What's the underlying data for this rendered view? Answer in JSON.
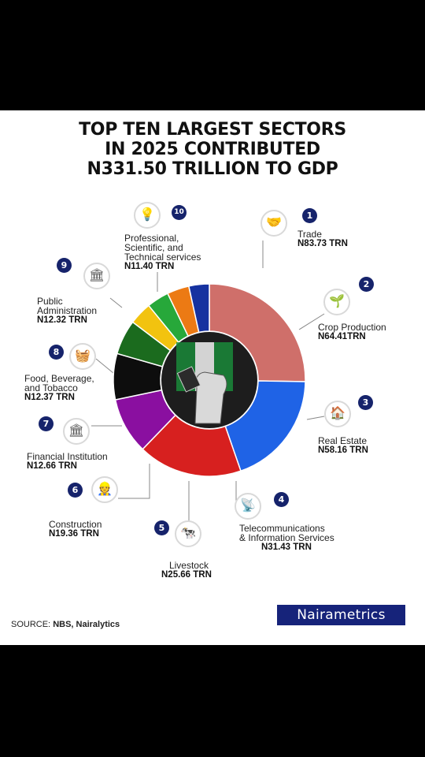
{
  "title": {
    "line1": "TOP TEN LARGEST SECTORS",
    "line2": "IN 2025 CONTRIBUTED",
    "line3": "N331.50 TRILLION TO GDP"
  },
  "chart_data": {
    "type": "pie",
    "title": "TOP TEN LARGEST SECTORS IN 2025 CONTRIBUTED N331.50 TRILLION TO GDP",
    "unit": "TRN",
    "total": 331.5,
    "slices": [
      {
        "rank": "1",
        "name": "Trade",
        "value": 83.73,
        "value_label": "N83.73 TRN",
        "color": "#cf6f6a",
        "icon": "handshake-globe-icon"
      },
      {
        "rank": "2",
        "name": "Crop Production",
        "value": 64.41,
        "value_label": "N64.41TRN",
        "color": "#1f63e6",
        "icon": "plant-hand-icon"
      },
      {
        "rank": "3",
        "name": "Real Estate",
        "value": 58.16,
        "value_label": "N58.16 TRN",
        "color": "#d7201f",
        "icon": "house-icon"
      },
      {
        "rank": "4",
        "name": "Telecommunications & Information Services",
        "value": 31.43,
        "value_label": "N31.43 TRN",
        "color": "#8a0fa0",
        "icon": "antenna-icon"
      },
      {
        "rank": "5",
        "name": "Livestock",
        "value": 25.66,
        "value_label": "N25.66 TRN",
        "color": "#0d0d0d",
        "icon": "cow-icon"
      },
      {
        "rank": "6",
        "name": "Construction",
        "value": 19.36,
        "value_label": "N19.36 TRN",
        "color": "#1b6b1e",
        "icon": "builder-icon"
      },
      {
        "rank": "7",
        "name": "Financial Institution",
        "value": 12.66,
        "value_label": "N12.66 TRN",
        "color": "#f2c30f",
        "icon": "bank-icon"
      },
      {
        "rank": "8",
        "name": "Food, Beverage, and Tobacco",
        "value": 12.37,
        "value_label": "N12.37 TRN",
        "color": "#27a83a",
        "icon": "food-basket-icon"
      },
      {
        "rank": "9",
        "name": "Public Administration",
        "value": 12.32,
        "value_label": "N12.32 TRN",
        "color": "#ec7a14",
        "icon": "government-building-icon"
      },
      {
        "rank": "10",
        "name": "Professional, Scientific, and Technical services",
        "value": 11.4,
        "value_label": "N11.40 TRN",
        "color": "#1632a0",
        "icon": "lightbulb-atom-icon"
      }
    ]
  },
  "labels": {
    "s1": {
      "name": "Trade"
    },
    "s2": {
      "name": "Crop Production"
    },
    "s3": {
      "name": "Real Estate"
    },
    "s4": {
      "l1": "Telecommunications",
      "l2": "& Information Services"
    },
    "s5": {
      "name": "Livestock"
    },
    "s6": {
      "name": "Construction"
    },
    "s7": {
      "name": "Financial Institution"
    },
    "s8": {
      "l1": "Food, Beverage,",
      "l2": "and Tobacco"
    },
    "s9": {
      "l1": "Public",
      "l2": "Administration"
    },
    "s10": {
      "l1": "Professional,",
      "l2": "Scientific, and",
      "l3": "Technical services"
    }
  },
  "source": {
    "prefix": "SOURCE:",
    "text": "NBS, Nairalytics"
  },
  "brand": "Nairametrics"
}
